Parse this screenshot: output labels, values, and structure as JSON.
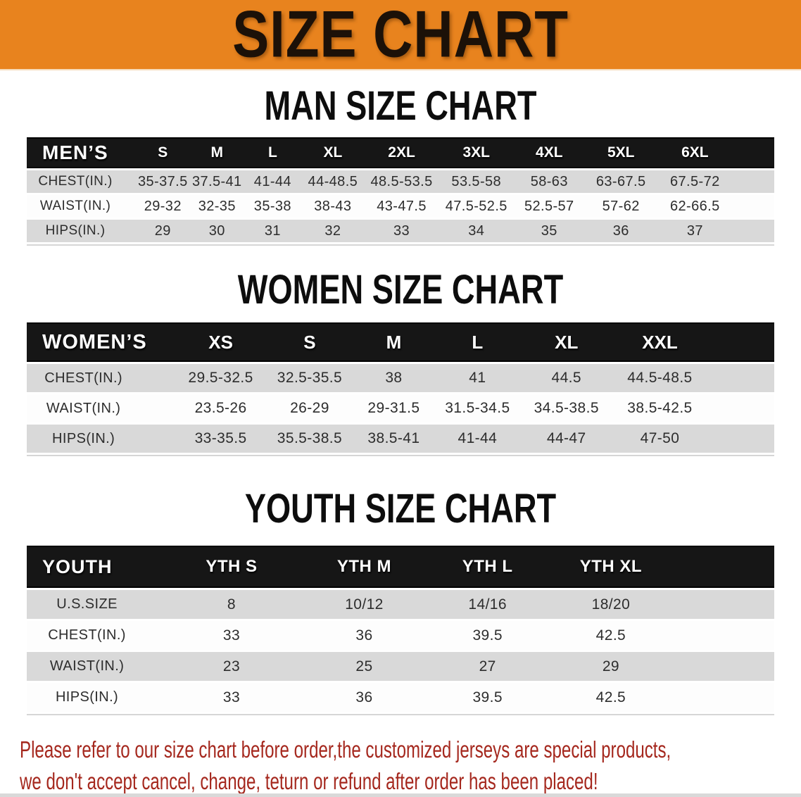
{
  "banner": {
    "title": "SIZE CHART"
  },
  "colors": {
    "accent": "#E8831E",
    "band": "#161616",
    "row_gray": "#D9D9D9",
    "red": "#A5281E"
  },
  "sections": [
    {
      "heading": "MAN SIZE CHART",
      "table": {
        "header_label": "MEN’S",
        "sizes": [
          "S",
          "M",
          "L",
          "XL",
          "2XL",
          "3XL",
          "4XL",
          "5XL",
          "6XL"
        ],
        "rows": [
          {
            "label": "CHEST(IN.)",
            "values": [
              "35-37.5",
              "37.5-41",
              "41-44",
              "44-48.5",
              "48.5-53.5",
              "53.5-58",
              "58-63",
              "63-67.5",
              "67.5-72"
            ]
          },
          {
            "label": "WAIST(IN.)",
            "values": [
              "29-32",
              "32-35",
              "35-38",
              "38-43",
              "43-47.5",
              "47.5-52.5",
              "52.5-57",
              "57-62",
              "62-66.5"
            ]
          },
          {
            "label": "HIPS(IN.)",
            "values": [
              "29",
              "30",
              "31",
              "32",
              "33",
              "34",
              "35",
              "36",
              "37"
            ]
          }
        ]
      }
    },
    {
      "heading": "WOMEN SIZE CHART",
      "table": {
        "header_label": "WOMEN’S",
        "sizes": [
          "XS",
          "S",
          "M",
          "L",
          "XL",
          "XXL"
        ],
        "rows": [
          {
            "label": "CHEST(IN.)",
            "values": [
              "29.5-32.5",
              "32.5-35.5",
              "38",
              "41",
              "44.5",
              "44.5-48.5"
            ]
          },
          {
            "label": "WAIST(IN.)",
            "values": [
              "23.5-26",
              "26-29",
              "29-31.5",
              "31.5-34.5",
              "34.5-38.5",
              "38.5-42.5"
            ]
          },
          {
            "label": "HIPS(IN.)",
            "values": [
              "33-35.5",
              "35.5-38.5",
              "38.5-41",
              "41-44",
              "44-47",
              "47-50"
            ]
          }
        ]
      }
    },
    {
      "heading": "YOUTH SIZE CHART",
      "table": {
        "header_label": "YOUTH",
        "sizes": [
          "YTH S",
          "YTH M",
          "YTH L",
          "YTH XL"
        ],
        "rows": [
          {
            "label": "U.S.SIZE",
            "values": [
              "8",
              "10/12",
              "14/16",
              "18/20"
            ]
          },
          {
            "label": "CHEST(IN.)",
            "values": [
              "33",
              "36",
              "39.5",
              "42.5"
            ]
          },
          {
            "label": "WAIST(IN.)",
            "values": [
              "23",
              "25",
              "27",
              "29"
            ]
          },
          {
            "label": "HIPS(IN.)",
            "values": [
              "33",
              "36",
              "39.5",
              "42.5"
            ]
          }
        ]
      }
    }
  ],
  "disclaimer": {
    "line1": "Please refer to our size chart before order,the customized jerseys are special products,",
    "line2": "we don't accept cancel, change, teturn or refund after order has been placed!"
  }
}
